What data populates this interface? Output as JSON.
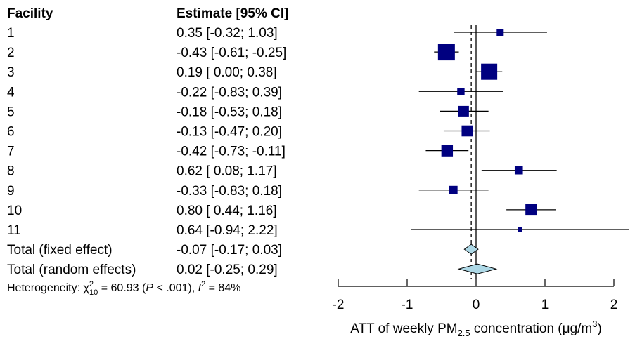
{
  "chart_data": {
    "type": "forest",
    "columns": {
      "label": "Facility",
      "estimate": "Estimate [95% CI]"
    },
    "studies": [
      {
        "label": "1",
        "est": 0.35,
        "lo": -0.32,
        "hi": 1.03,
        "text": "0.35 [-0.32;  1.03]",
        "weight": 0.3
      },
      {
        "label": "2",
        "est": -0.43,
        "lo": -0.61,
        "hi": -0.25,
        "text": "-0.43 [-0.61; -0.25]",
        "weight": 1.0
      },
      {
        "label": "3",
        "est": 0.19,
        "lo": 0.0,
        "hi": 0.38,
        "text": "0.19 [ 0.00;  0.38]",
        "weight": 0.95
      },
      {
        "label": "4",
        "est": -0.22,
        "lo": -0.83,
        "hi": 0.39,
        "text": "-0.22 [-0.83;  0.39]",
        "weight": 0.32
      },
      {
        "label": "5",
        "est": -0.18,
        "lo": -0.53,
        "hi": 0.18,
        "text": "-0.18 [-0.53;  0.18]",
        "weight": 0.55
      },
      {
        "label": "6",
        "est": -0.13,
        "lo": -0.47,
        "hi": 0.2,
        "text": "-0.13 [-0.47;  0.20]",
        "weight": 0.58
      },
      {
        "label": "7",
        "est": -0.42,
        "lo": -0.73,
        "hi": -0.11,
        "text": "-0.42 [-0.73; -0.11]",
        "weight": 0.62
      },
      {
        "label": "8",
        "est": 0.62,
        "lo": 0.08,
        "hi": 1.17,
        "text": "0.62 [ 0.08;  1.17]",
        "weight": 0.38
      },
      {
        "label": "9",
        "est": -0.33,
        "lo": -0.83,
        "hi": 0.18,
        "text": "-0.33 [-0.83;  0.18]",
        "weight": 0.4
      },
      {
        "label": "10",
        "est": 0.8,
        "lo": 0.44,
        "hi": 1.16,
        "text": "0.80 [ 0.44;  1.16]",
        "weight": 0.62
      },
      {
        "label": "11",
        "est": 0.64,
        "lo": -0.94,
        "hi": 2.22,
        "text": "0.64 [-0.94;  2.22]",
        "weight": 0.12
      }
    ],
    "pooled": [
      {
        "label": "Total (fixed effect)",
        "est": -0.07,
        "lo": -0.17,
        "hi": 0.03,
        "text": "-0.07 [-0.17;  0.03]"
      },
      {
        "label": "Total (random effects)",
        "est": 0.02,
        "lo": -0.25,
        "hi": 0.29,
        "text": "0.02 [-0.25;  0.29]"
      }
    ],
    "heterogeneity": {
      "prefix": "Heterogeneity: ",
      "chi": "χ",
      "chi_sup": "2",
      "chi_sub": "10",
      "chi_value": " = 60.93 (",
      "p_symbol": "P",
      "p_value": " < .001), ",
      "i2_symbol": "I",
      "i2_sup": "2",
      "i2_value": " = 84%"
    },
    "xaxis": {
      "ticks": [
        -2,
        -1,
        0,
        1,
        2
      ],
      "tick_labels": [
        "-2",
        "-1",
        "0",
        "1",
        "2"
      ],
      "range": [
        -2,
        2.22
      ],
      "label_pre": "ATT of weekly PM",
      "label_sub": "2.5",
      "label_mid": " concentration (",
      "label_unit": "μg/m",
      "label_sup": "3",
      "label_post": ")"
    },
    "reference_lines": {
      "null_value": 0,
      "fixed_effect_value": -0.07
    },
    "colors": {
      "square": "#000080",
      "diamond": "#add8e6",
      "line": "#000000"
    }
  }
}
